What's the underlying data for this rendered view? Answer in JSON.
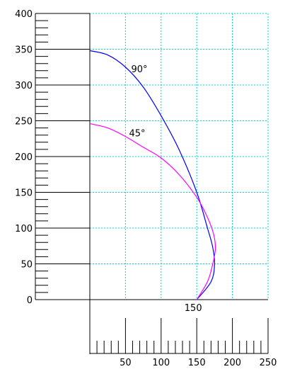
{
  "chart_data": {
    "type": "line",
    "title": "",
    "xlabel": "",
    "ylabel": "",
    "xlim": [
      0,
      250
    ],
    "ylim": [
      0,
      400
    ],
    "grid": true,
    "x_axis_tick_labels": [
      "50",
      "100",
      "150",
      "200",
      "250"
    ],
    "y_axis_tick_labels": [
      "0",
      "50",
      "100",
      "150",
      "200",
      "250",
      "300",
      "350",
      "400"
    ],
    "baseline_annotation": "150",
    "series": [
      {
        "name": "90°",
        "color": "#0000ff",
        "label_at": [
          58,
          318
        ],
        "points": [
          [
            0,
            348
          ],
          [
            25,
            342
          ],
          [
            50,
            325
          ],
          [
            75,
            297
          ],
          [
            100,
            257
          ],
          [
            125,
            210
          ],
          [
            150,
            150
          ],
          [
            165,
            100
          ],
          [
            172,
            75
          ],
          [
            175,
            50
          ],
          [
            170,
            25
          ],
          [
            150,
            0
          ]
        ]
      },
      {
        "name": "45°",
        "color": "#ff00ff",
        "label_at": [
          55,
          228
        ],
        "points": [
          [
            0,
            246
          ],
          [
            25,
            240
          ],
          [
            50,
            228
          ],
          [
            75,
            213
          ],
          [
            100,
            198
          ],
          [
            125,
            175
          ],
          [
            150,
            143
          ],
          [
            165,
            115
          ],
          [
            174,
            90
          ],
          [
            176,
            70
          ],
          [
            172,
            48
          ],
          [
            165,
            25
          ],
          [
            150,
            0
          ]
        ]
      }
    ]
  }
}
